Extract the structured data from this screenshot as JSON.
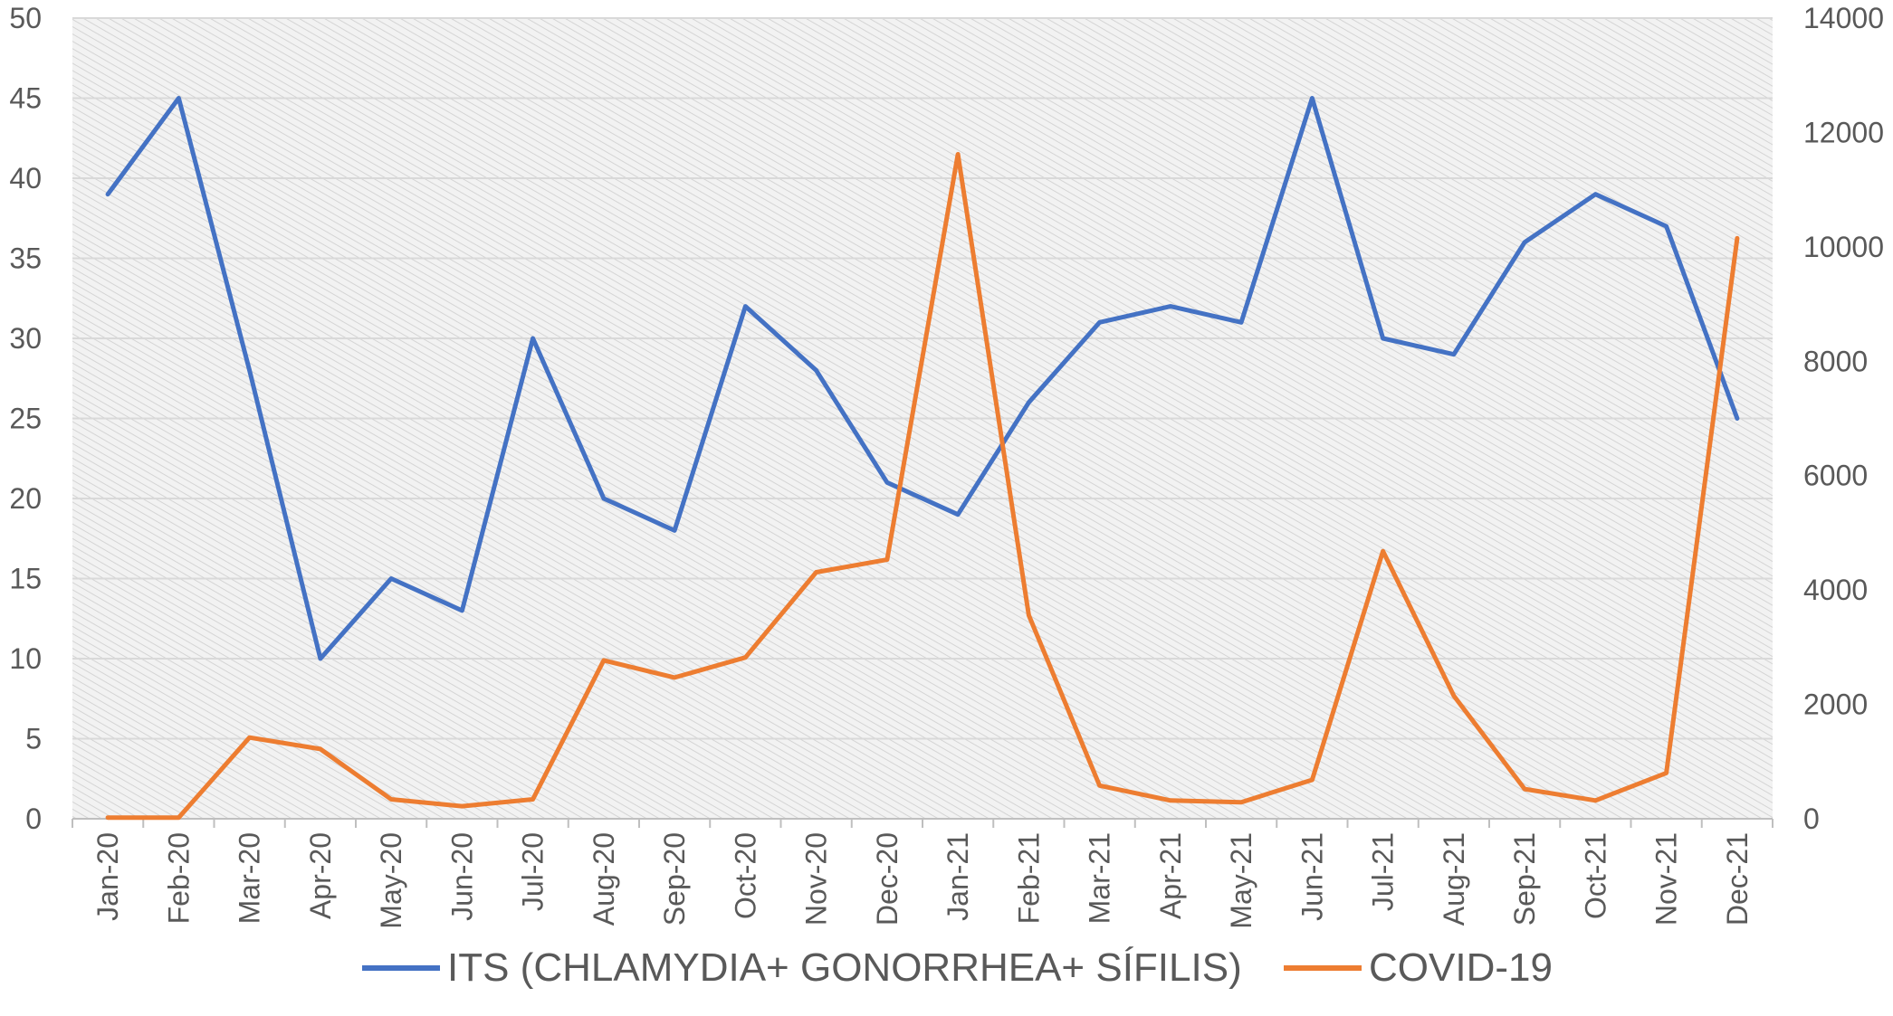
{
  "chart_data": {
    "type": "line",
    "categories": [
      "Jan-20",
      "Feb-20",
      "Mar-20",
      "Apr-20",
      "May-20",
      "Jun-20",
      "Jul-20",
      "Aug-20",
      "Sep-20",
      "Oct-20",
      "Nov-20",
      "Dec-20",
      "Jan-21",
      "Feb-21",
      "Mar-21",
      "Apr-21",
      "May-21",
      "Jun-21",
      "Jul-21",
      "Aug-21",
      "Sep-21",
      "Oct-21",
      "Nov-21",
      "Dec-21"
    ],
    "y_left": {
      "lim": [
        0,
        50
      ],
      "ticks": [
        0,
        5,
        10,
        15,
        20,
        25,
        30,
        35,
        40,
        45,
        50
      ]
    },
    "y_right": {
      "lim": [
        0,
        14000
      ],
      "ticks": [
        0,
        2000,
        4000,
        6000,
        8000,
        10000,
        12000,
        14000
      ]
    },
    "grid": true,
    "legend_position": "bottom",
    "series": [
      {
        "name": "ITS (CHLAMYDIA+ GONORRHEA+ SÍFILIS)",
        "axis": "left",
        "color": "#4472C4",
        "values": [
          39,
          45,
          28,
          10,
          15,
          13,
          30,
          20,
          18,
          32,
          28,
          21,
          19,
          26,
          31,
          32,
          31,
          45,
          30,
          29,
          36,
          39,
          37,
          25
        ]
      },
      {
        "name": "COVID-19",
        "axis": "right",
        "color": "#ED7D31",
        "values": [
          20,
          20,
          1420,
          1220,
          340,
          220,
          340,
          2770,
          2470,
          2820,
          4310,
          4530,
          11620,
          3560,
          580,
          320,
          290,
          680,
          4680,
          2150,
          520,
          320,
          800,
          10150
        ]
      }
    ]
  }
}
